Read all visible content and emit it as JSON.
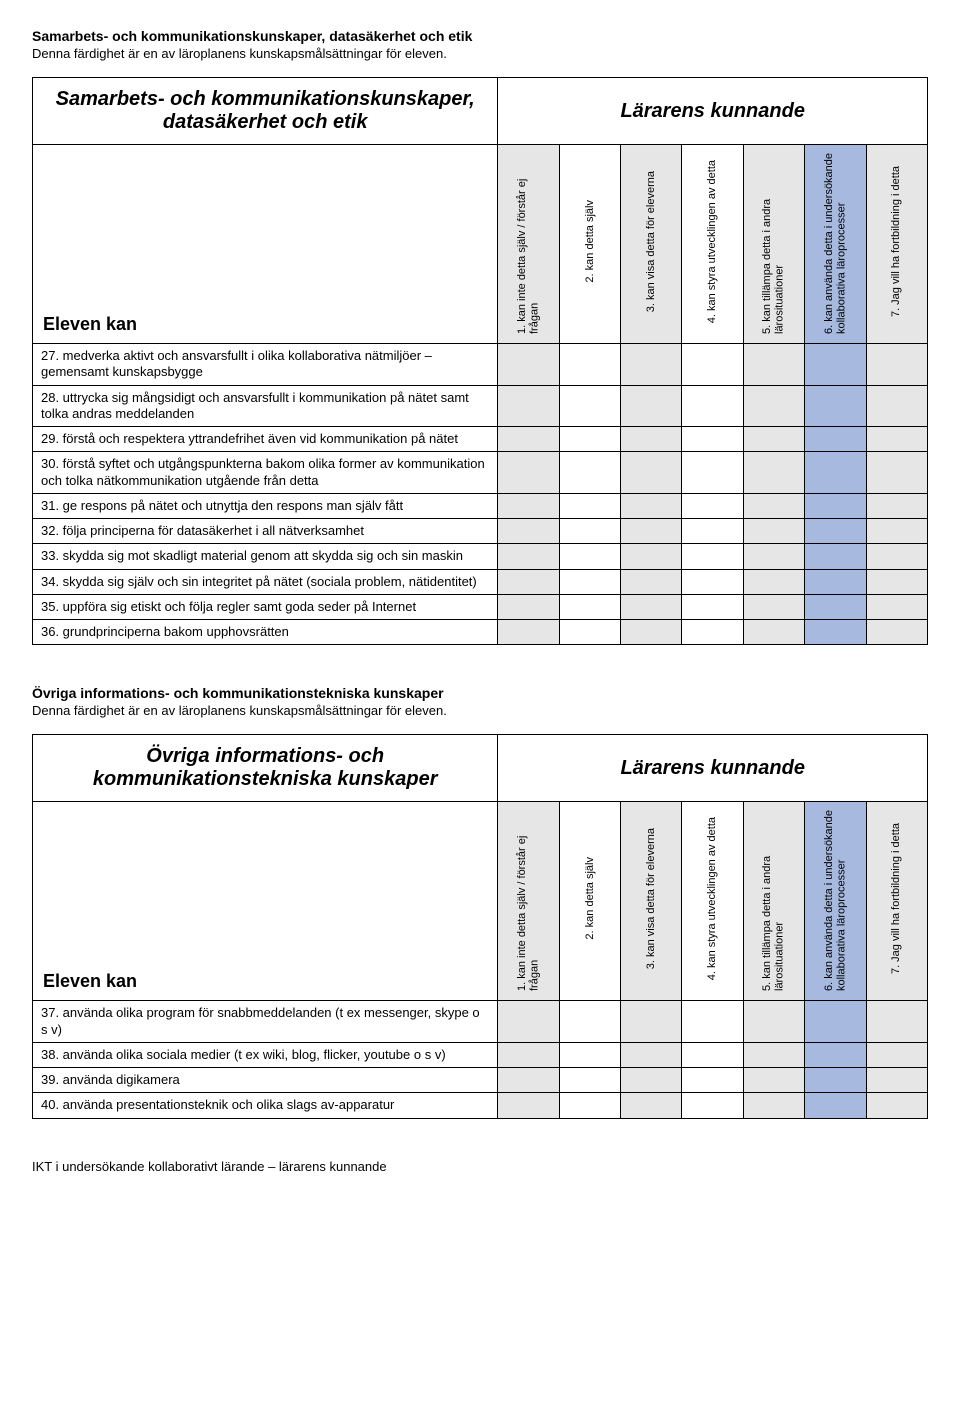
{
  "colors": {
    "grayFill": "#e6e6e6",
    "blueFill": "#a7b9de",
    "white": "#ffffff",
    "border": "#000000"
  },
  "columnHeaders": [
    "1. kan inte detta själv / förstår ej frågan",
    "2. kan detta själv",
    "3. kan visa detta för eleverna",
    "4. kan styra utvecklingen av detta",
    "5. kan tillämpa detta i andra lärosituationer",
    "6. kan använda detta i undersökande kollaborativa läroprocesser",
    "7. Jag vill ha fortbildning i detta"
  ],
  "columnFills": [
    "gray",
    "white",
    "gray",
    "white",
    "gray",
    "blue",
    "gray"
  ],
  "section1": {
    "titleBold": "Samarbets- och kommunikationskunskaper, datasäkerhet och etik",
    "sub": "Denna färdighet är en av läroplanens kunskapsmålsättningar för eleven.",
    "tableTitleLeft": "Samarbets- och kommunikationskunskaper, datasäkerhet och etik",
    "tableTitleRight": "Lärarens kunnande",
    "rowHeaderLabel": "Eleven kan",
    "rows": [
      "27. medverka aktivt och ansvarsfullt i olika kollaborativa nätmiljöer – gemensamt kunskapsbygge",
      "28. uttrycka sig mångsidigt och ansvarsfullt i kommunikation på nätet samt tolka andras meddelanden",
      "29. förstå och respektera yttrandefrihet även vid kommunikation på nätet",
      "30. förstå syftet och utgångspunkterna bakom olika former av kommunikation och tolka nätkommunikation utgående från detta",
      "31. ge respons på nätet och utnyttja den respons man själv fått",
      "32. följa principerna för datasäkerhet i all nätverksamhet",
      "33. skydda sig mot skadligt material genom att skydda sig och sin maskin",
      "34. skydda sig själv och sin integritet på nätet (sociala problem, nätidentitet)",
      "35. uppföra sig etiskt och följa regler samt goda seder på Internet",
      "36. grundprinciperna bakom upphovsrätten"
    ]
  },
  "section2": {
    "titleBold": "Övriga informations- och kommunikationstekniska kunskaper",
    "sub": "Denna färdighet är en av läroplanens kunskapsmålsättningar för eleven.",
    "tableTitleLeft": "Övriga informations- och kommunikationstekniska kunskaper",
    "tableTitleRight": "Lärarens kunnande",
    "rowHeaderLabel": "Eleven kan",
    "rows": [
      "37. använda olika program för snabbmeddelanden (t ex messenger, skype o s v)",
      "38. använda olika sociala medier (t ex  wiki, blog, flicker, youtube o s v)",
      "39. använda digikamera",
      "40. använda presentationsteknik och olika slags av-apparatur"
    ]
  },
  "footer": "IKT i undersökande kollaborativt lärande – lärarens kunnande"
}
